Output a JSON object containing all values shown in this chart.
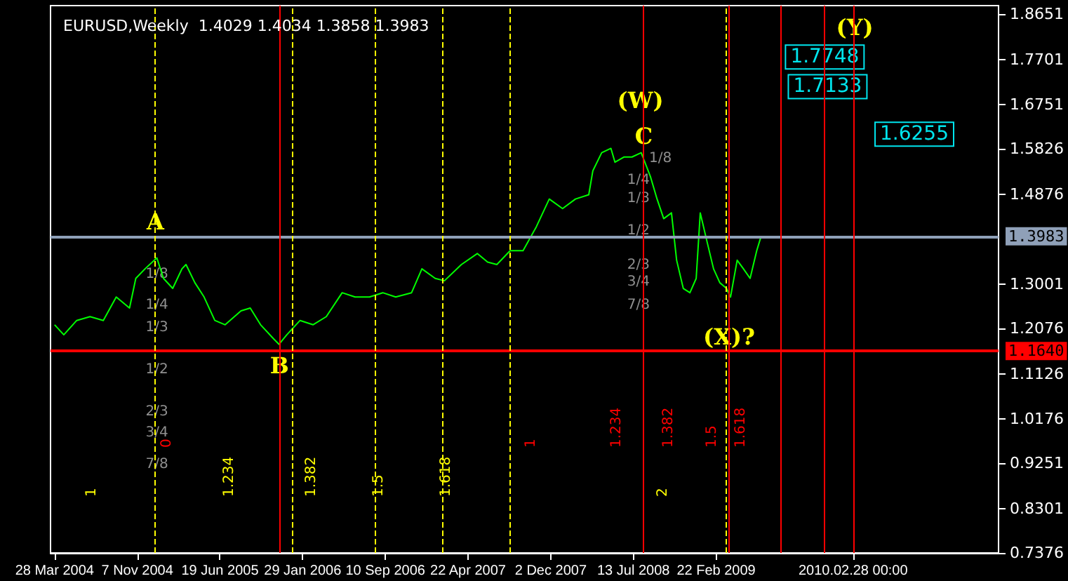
{
  "chart_data": {
    "type": "line",
    "title": "EURUSD,Weekly  1.4029 1.4034 1.3858 1.3983",
    "x": [
      "2004-03-28",
      "2004-04-22",
      "2004-05-27",
      "2004-07-02",
      "2004-08-07",
      "2004-09-11",
      "2004-10-17",
      "2004-11-03",
      "2004-11-28",
      "2004-12-30",
      "2005-01-17",
      "2005-02-11",
      "2005-03-08",
      "2005-03-19",
      "2005-04-12",
      "2005-05-07",
      "2005-06-05",
      "2005-07-03",
      "2005-08-15",
      "2005-09-09",
      "2005-10-07",
      "2005-11-12",
      "2005-11-26",
      "2005-12-17",
      "2006-01-22",
      "2006-02-26",
      "2006-04-03",
      "2006-05-16",
      "2006-06-20",
      "2006-07-29",
      "2006-09-03",
      "2006-10-08",
      "2006-11-20",
      "2006-12-18",
      "2007-01-23",
      "2007-02-17",
      "2007-04-04",
      "2007-05-17",
      "2007-06-14",
      "2007-07-09",
      "2007-08-14",
      "2007-09-18",
      "2007-10-24",
      "2007-11-28",
      "2008-01-03",
      "2008-02-07",
      "2008-03-14",
      "2008-03-25",
      "2008-04-18",
      "2008-05-13",
      "2008-05-24",
      "2008-06-18",
      "2008-07-09",
      "2008-08-03",
      "2008-08-28",
      "2008-09-15",
      "2008-10-03",
      "2008-10-24",
      "2008-11-07",
      "2008-11-25",
      "2008-12-13",
      "2008-12-30",
      "2009-01-10",
      "2009-01-28",
      "2009-02-15",
      "2009-03-04",
      "2009-03-22",
      "2009-04-02",
      "2009-04-20",
      "2009-05-07",
      "2009-05-25",
      "2009-06-12",
      "2009-06-23"
    ],
    "series": [
      {
        "color": "#00ff00",
        "values": [
          1.215,
          1.194,
          1.224,
          1.232,
          1.224,
          1.273,
          1.25,
          1.312,
          1.332,
          1.355,
          1.312,
          1.291,
          1.332,
          1.341,
          1.303,
          1.273,
          1.224,
          1.215,
          1.244,
          1.25,
          1.215,
          1.185,
          1.174,
          1.194,
          1.224,
          1.215,
          1.232,
          1.282,
          1.273,
          1.273,
          1.282,
          1.273,
          1.282,
          1.332,
          1.312,
          1.307,
          1.341,
          1.364,
          1.346,
          1.341,
          1.37,
          1.37,
          1.42,
          1.478,
          1.458,
          1.478,
          1.487,
          1.537,
          1.575,
          1.584,
          1.555,
          1.566,
          1.566,
          1.575,
          1.525,
          1.478,
          1.437,
          1.449,
          1.35,
          1.291,
          1.282,
          1.312,
          1.449,
          1.39,
          1.332,
          1.303,
          1.291,
          1.273,
          1.35,
          1.332,
          1.312,
          1.37,
          1.398
        ]
      }
    ],
    "xlim": [
      "2004-03-17",
      "2011-03-29"
    ],
    "xticks": [
      {
        "value": "2004-03-28",
        "label": "28 Mar 2004"
      },
      {
        "value": "2004-11-07",
        "label": "7 Nov 2004"
      },
      {
        "value": "2005-06-19",
        "label": "19 Jun 2005"
      },
      {
        "value": "2006-01-29",
        "label": "29 Jan 2006"
      },
      {
        "value": "2006-09-10",
        "label": "10 Sep 2006"
      },
      {
        "value": "2007-04-22",
        "label": "22 Apr 2007"
      },
      {
        "value": "2007-12-02",
        "label": "2 Dec 2007"
      },
      {
        "value": "2008-07-13",
        "label": "13 Jul 2008"
      },
      {
        "value": "2009-02-22",
        "label": "22 Feb 2009"
      },
      {
        "value": "2010-02-28",
        "label": "2010.02.28 00:00"
      }
    ],
    "ylim": [
      0.7376,
      1.8827
    ],
    "yticks": [
      0.7376,
      0.8301,
      0.9251,
      1.0176,
      1.1126,
      1.2076,
      1.3001,
      1.4876,
      1.5826,
      1.6751,
      1.7701,
      1.8651
    ],
    "grid": false,
    "marker": "none",
    "line_style": "solid",
    "ref_lines": [
      {
        "axis": "y",
        "value": 1.3983,
        "label": "1.3983",
        "color": "#8fa0b8",
        "line_style": "solid"
      },
      {
        "axis": "y",
        "value": 1.164,
        "label": "1.1640",
        "color": "#ff0000",
        "line_style": "solid"
      },
      {
        "axis": "x",
        "value": "2004-12-26",
        "label": "1",
        "color": "#ffff00",
        "line_style": "dashed"
      },
      {
        "axis": "x",
        "value": "2006-01-01",
        "label": "1.234",
        "color": "#ffff00",
        "line_style": "dashed"
      },
      {
        "axis": "x",
        "value": "2006-08-13",
        "label": "1.382",
        "color": "#ffff00",
        "line_style": "dashed"
      },
      {
        "axis": "x",
        "value": "2007-02-11",
        "label": "1.5",
        "color": "#ffff00",
        "line_style": "dashed"
      },
      {
        "axis": "x",
        "value": "2007-08-12",
        "label": "1.618",
        "color": "#ffff00",
        "line_style": "dashed"
      },
      {
        "axis": "x",
        "value": "2009-03-22",
        "label": "2",
        "color": "#ffff00",
        "line_style": "dashed"
      },
      {
        "axis": "x",
        "value": "2005-11-27",
        "label": "0",
        "color": "#ff0000",
        "line_style": "solid"
      },
      {
        "axis": "x",
        "value": "2008-08-10",
        "label": "1",
        "color": "#ff0000",
        "line_style": "solid"
      },
      {
        "axis": "x",
        "value": "2009-03-29",
        "label": "1.234",
        "color": "#ff0000",
        "line_style": "solid"
      },
      {
        "axis": "x",
        "value": "2009-08-16",
        "label": "1.382",
        "color": "#ff0000",
        "line_style": "solid"
      },
      {
        "axis": "x",
        "value": "2009-12-13",
        "label": "1.5",
        "color": "#ff0000",
        "line_style": "solid"
      },
      {
        "axis": "x",
        "value": "2010-02-28",
        "label": "1.618",
        "color": "#ff0000",
        "line_style": "solid"
      }
    ],
    "annotations": [
      {
        "text": "A",
        "x": "2004-12-26",
        "y": 1.43
      },
      {
        "text": "B",
        "x": "2005-11-27",
        "y": 1.13
      },
      {
        "text": "C",
        "x": "2008-08-10",
        "y": 1.61
      },
      {
        "text": "(X)?",
        "x": "2009-03-29",
        "y": 1.19
      },
      "(W)",
      "(Y)",
      "1.7748",
      "1.7133",
      "1.6255",
      {
        "text": "1/8",
        "x": "2004-12-30",
        "y": 1.32
      },
      {
        "text": "1/4",
        "x": "2004-12-30",
        "y": 1.256
      },
      {
        "text": "1/3",
        "x": "2004-12-30",
        "y": 1.209
      },
      {
        "text": "1/2",
        "x": "2004-12-30",
        "y": 1.121
      },
      {
        "text": "2/3",
        "x": "2004-12-30",
        "y": 1.033
      },
      {
        "text": "3/4",
        "x": "2004-12-30",
        "y": 0.989
      },
      {
        "text": "7/8",
        "x": "2004-12-30",
        "y": 0.922
      },
      "1/8",
      "1/4",
      "1/3",
      "1/2",
      "2/3",
      "3/4",
      "7/8"
    ]
  }
}
